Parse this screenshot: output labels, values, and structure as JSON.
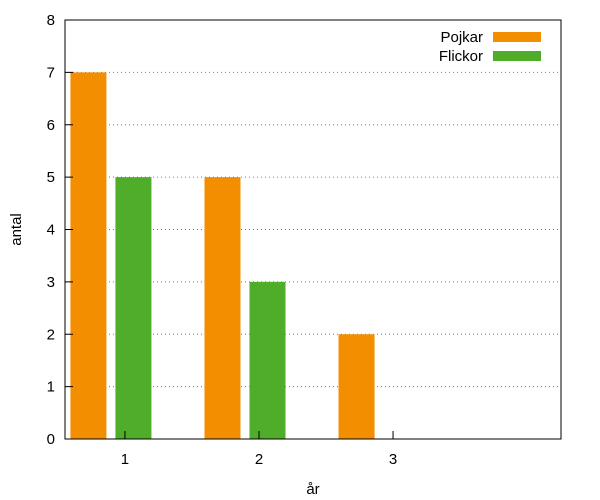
{
  "chart_data": {
    "type": "bar",
    "categories": [
      "1",
      "2",
      "3"
    ],
    "series": [
      {
        "name": "Pojkar",
        "values": [
          7,
          5,
          2
        ],
        "color": "#f28e00"
      },
      {
        "name": "Flickor",
        "values": [
          5,
          3,
          0
        ],
        "color": "#4fad2a"
      }
    ],
    "xlabel": "år",
    "ylabel": "antal",
    "ylim": [
      0,
      8
    ],
    "yticks": [
      "0",
      "1",
      "2",
      "3",
      "4",
      "5",
      "6",
      "7",
      "8"
    ],
    "grid": true,
    "legend_position": "top-right"
  }
}
